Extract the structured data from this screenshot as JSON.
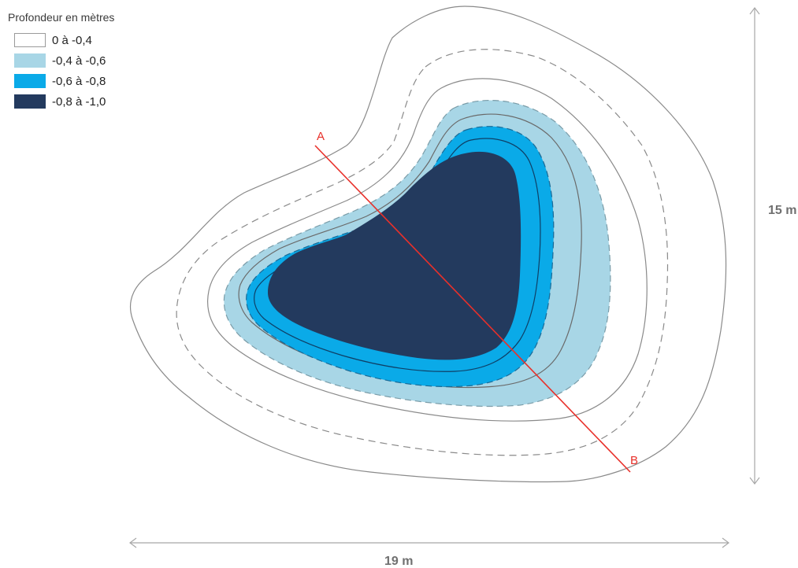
{
  "legend": {
    "title": "Profondeur en mètres",
    "items": [
      {
        "label": "0 à -0,4",
        "color": "#ffffff",
        "border": "#9a9a9a"
      },
      {
        "label": "-0,4 à -0,6",
        "color": "#a8d6e6",
        "border": "#a8d6e6"
      },
      {
        "label": "-0,6 à -0,8",
        "color": "#0aaae8",
        "border": "#0aaae8"
      },
      {
        "label": "-0,8 à -1,0",
        "color": "#233a5e",
        "border": "#233a5e"
      }
    ]
  },
  "section": {
    "start_label": "A",
    "end_label": "B",
    "color": "#e8302a"
  },
  "dimensions": {
    "width_label": "19 m",
    "height_label": "15 m",
    "color": "#a8a8a8"
  },
  "contour_color": "#8a8a8a"
}
